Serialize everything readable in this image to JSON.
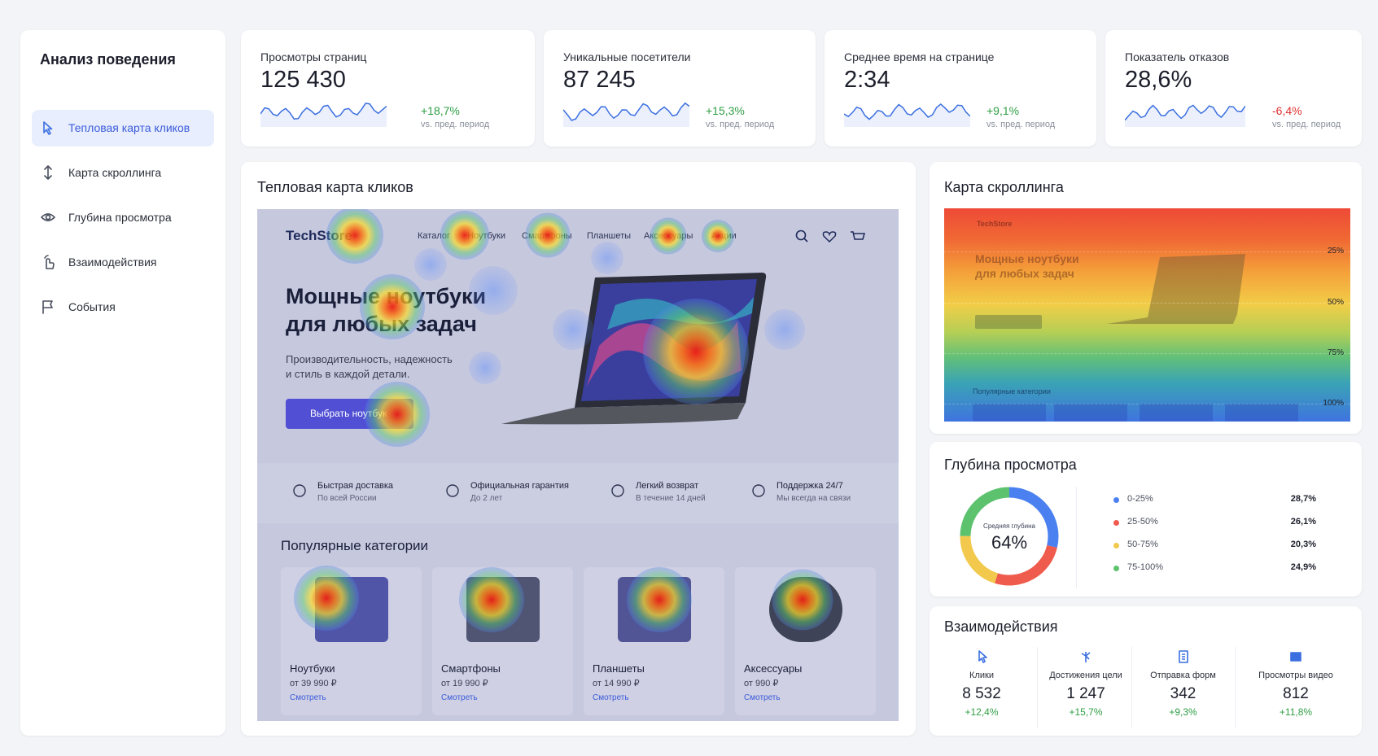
{
  "sidebar": {
    "title": "Анализ поведения",
    "items": [
      "Тепловая карта кликов",
      "Карта скроллинга",
      "Глубина просмотра",
      "Взаимодействия",
      "События"
    ]
  },
  "kpis": [
    {
      "label": "Просмотры страниц",
      "value": "125 430",
      "change": "+18,7%",
      "change_color": "#2f9e44",
      "note": "vs. пред. период"
    },
    {
      "label": "Уникальные  посетители",
      "value": "87 245",
      "change": "+15,3%",
      "change_color": "#2f9e44",
      "note": "vs. пред. период"
    },
    {
      "label": "Среднее время на странице",
      "value": "2:34",
      "change": "+9,1%",
      "change_color": "#2f9e44",
      "note": "vs. пред. период"
    },
    {
      "label": "Показатель отказов",
      "value": "28,6%",
      "change": "-6,4%",
      "change_color": "#e03131",
      "note": "vs. пред. период"
    }
  ],
  "heatmap": {
    "title": "Тепловая карта кликов",
    "logo": "TechStore",
    "nav": [
      "Каталог",
      "Ноутбуки",
      "Смартфоны",
      "Планшеты",
      "Аксессуары",
      "Акции"
    ],
    "hero_title": [
      "Мощные ноутбуки",
      "для любых задач"
    ],
    "hero_text": [
      "Производительность, надежность",
      "и стиль в каждой детали."
    ],
    "button": "Выбрать ноутбук",
    "features": [
      {
        "title": "Быстрая доставка",
        "subtitle": "По всей России"
      },
      {
        "title": "Официальная гарантия",
        "subtitle": "До 2 лет"
      },
      {
        "title": "Легкий возврат",
        "subtitle": "В течение 14 дней"
      },
      {
        "title": "Поддержка 24/7",
        "subtitle": "Мы всегда на связи"
      }
    ],
    "categories_title": "Популярные категории",
    "products": [
      {
        "name": "Ноутбуки",
        "price": "от 39 990 ₽",
        "link": "Смотреть"
      },
      {
        "name": "Смартфоны",
        "price": "от 19 990 ₽",
        "link": "Смотреть"
      },
      {
        "name": "Планшеты",
        "price": "от 14 990 ₽",
        "link": "Смотреть"
      },
      {
        "name": "Аксессуары",
        "price": "от 990 ₽",
        "link": "Смотреть"
      }
    ]
  },
  "scroll": {
    "title": "Карта скроллинга",
    "preview_logo": "TechStore",
    "preview_title": [
      "Мощные ноутбуки",
      "для любых задач"
    ],
    "preview_section": "Популярные категории",
    "marks": [
      "25%",
      "50%",
      "75%",
      "100%"
    ]
  },
  "depth": {
    "title": "Глубина просмотра",
    "center_label": "Средняя глубина",
    "center_value": "64%",
    "segments": [
      {
        "label": "0-25%",
        "value": 28.7,
        "value_label": "28,7%",
        "color": "#4a80f0"
      },
      {
        "label": "25-50%",
        "value": 26.1,
        "value_label": "26,1%",
        "color": "#ef5b4c"
      },
      {
        "label": "50-75%",
        "value": 20.3,
        "value_label": "20,3%",
        "color": "#f2c94c"
      },
      {
        "label": "75-100%",
        "value": 24.9,
        "value_label": "24,9%",
        "color": "#5cc26e"
      }
    ]
  },
  "interactions": {
    "title": "Взаимодействия",
    "items": [
      {
        "label": "Клики",
        "value": "8 532",
        "change": "+12,4%"
      },
      {
        "label": "Достижения цели",
        "value": "1 247",
        "change": "+15,7%"
      },
      {
        "label": "Отправка форм",
        "value": "342",
        "change": "+9,3%"
      },
      {
        "label": "Просмотры видео",
        "value": "812",
        "change": "+11,8%"
      }
    ]
  }
}
